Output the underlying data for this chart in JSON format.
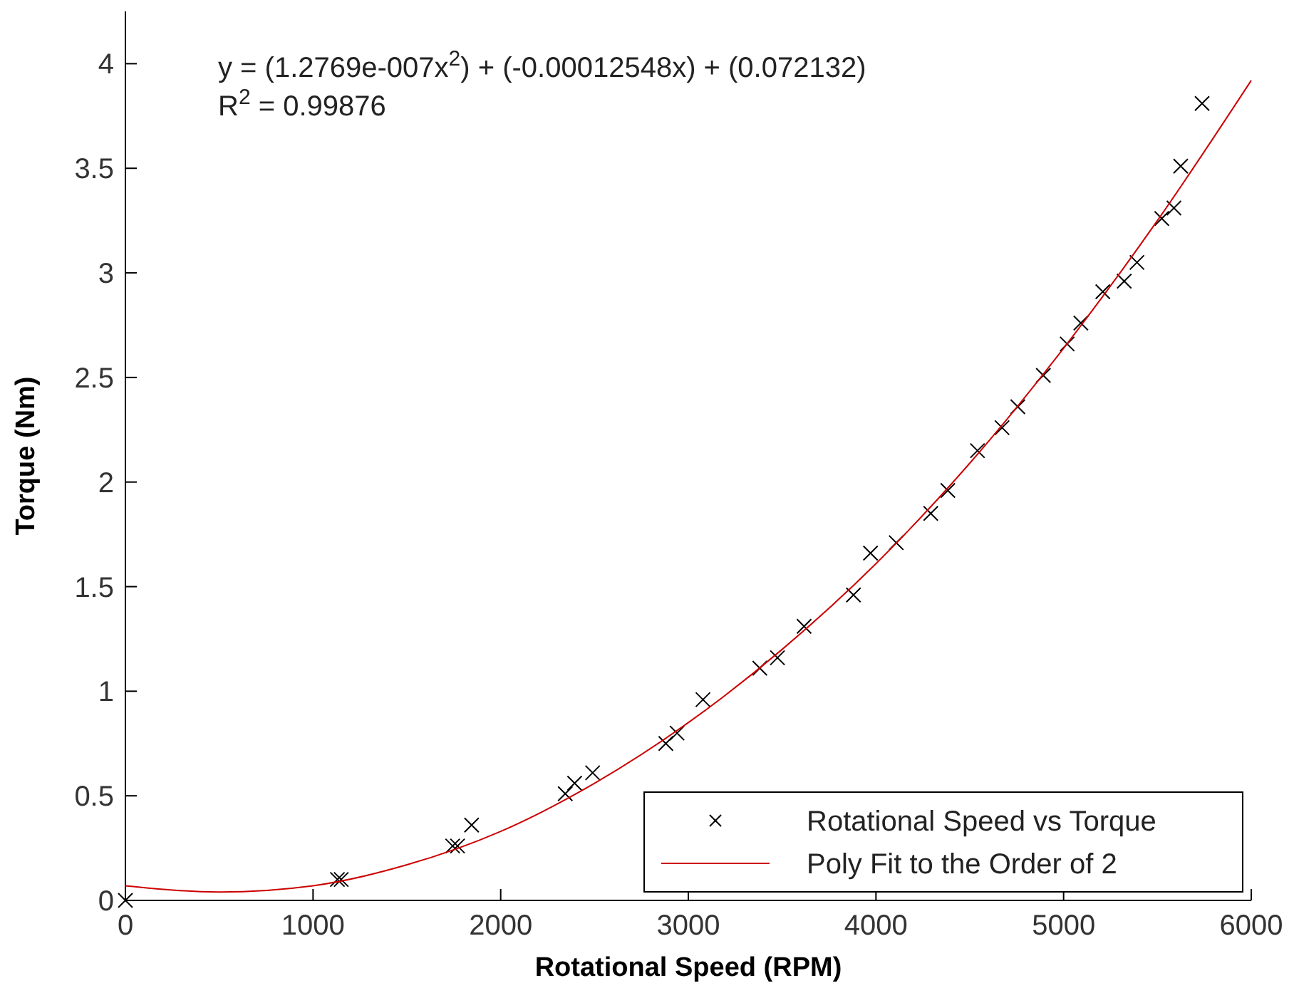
{
  "chart_data": {
    "type": "scatter",
    "xlabel": "Rotational Speed (RPM)",
    "ylabel": "Torque (Nm)",
    "annotations": [
      "y = (1.2769e-007x$^{2}$) + (-0.00012548x) + (0.072132)",
      "R$^{2}$ = 0.99876"
    ],
    "xlim": [
      0,
      6000
    ],
    "ylim": [
      0,
      4.25
    ],
    "xticks": [
      0,
      1000,
      2000,
      3000,
      4000,
      5000,
      6000
    ],
    "yticks": [
      0,
      0.5,
      1,
      1.5,
      2,
      2.5,
      3,
      3.5,
      4
    ],
    "grid": false,
    "legend": "bottom right",
    "series": [
      {
        "name": "Rotational Speed vs Torque",
        "marker": "cross",
        "color": "#000000",
        "x": [
          0,
          1130,
          1150,
          1744,
          1770,
          1845,
          2344,
          2394,
          2490,
          2880,
          2940,
          3078,
          3381,
          3475,
          3617,
          3880,
          3971,
          4108,
          4292,
          4383,
          4541,
          4672,
          4756,
          4892,
          5019,
          5092,
          5209,
          5323,
          5391,
          5523,
          5588,
          5624,
          5738
        ],
        "values": [
          0,
          0.1,
          0.1,
          0.26,
          0.26,
          0.36,
          0.51,
          0.56,
          0.61,
          0.75,
          0.8,
          0.96,
          1.11,
          1.16,
          1.31,
          1.46,
          1.66,
          1.71,
          1.85,
          1.96,
          2.15,
          2.26,
          2.36,
          2.51,
          2.66,
          2.76,
          2.91,
          2.96,
          3.05,
          3.26,
          3.31,
          3.51,
          3.81
        ]
      },
      {
        "name": "Poly Fit to the Order of 2",
        "type": "line",
        "marker": "none",
        "line_style": "solid",
        "color": "#cc0000",
        "x": [
          0,
          500,
          1000,
          1500,
          2000,
          2500,
          3000,
          3500,
          4000,
          4500,
          5000,
          5500,
          6000
        ],
        "values": [
          0.07,
          0.04,
          0.07,
          0.17,
          0.33,
          0.56,
          0.85,
          1.2,
          1.61,
          2.09,
          2.64,
          3.25,
          3.92
        ]
      }
    ]
  }
}
